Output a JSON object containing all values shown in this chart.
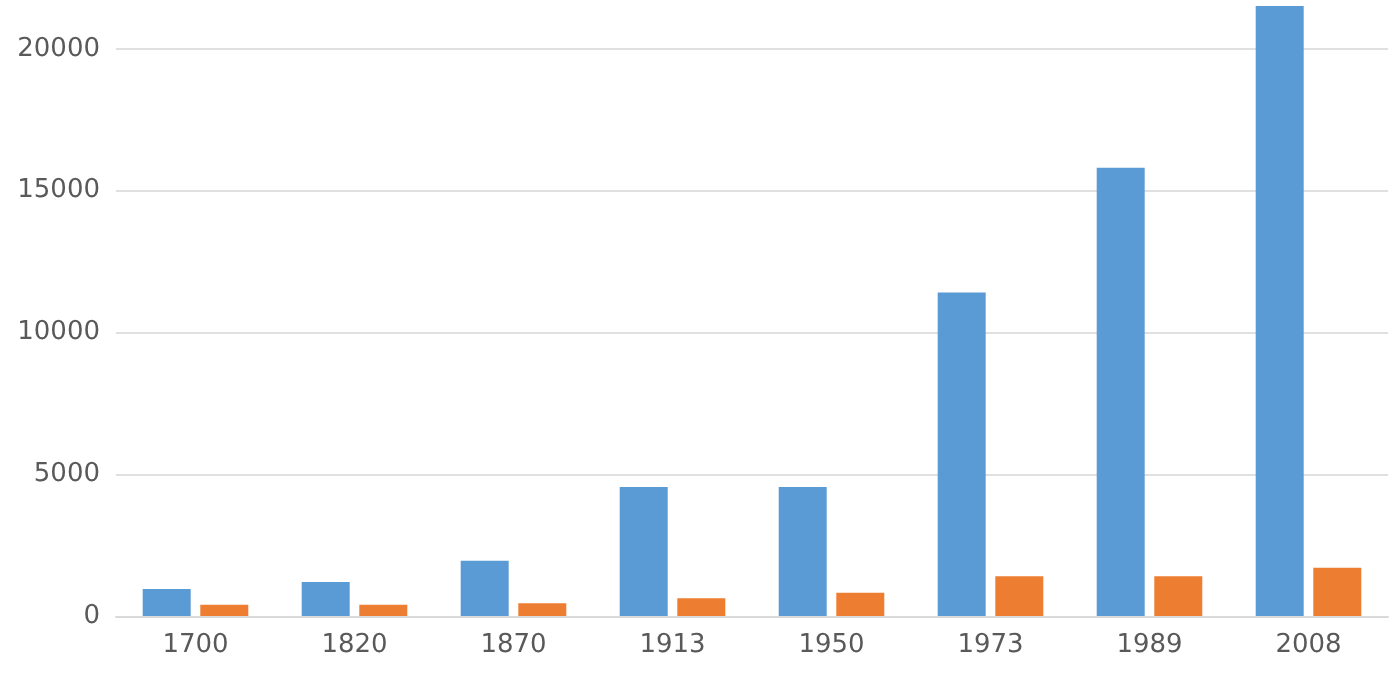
{
  "chart_data": {
    "type": "bar",
    "categories": [
      "1700",
      "1820",
      "1870",
      "1913",
      "1950",
      "1973",
      "1989",
      "2008"
    ],
    "series": [
      {
        "color": "#5b9bd5",
        "values": [
          950,
          1200,
          1950,
          4550,
          4550,
          11400,
          15800,
          21500
        ]
      },
      {
        "color": "#ed7d31",
        "values": [
          400,
          400,
          450,
          630,
          820,
          1400,
          1400,
          1700
        ]
      }
    ],
    "ylim": [
      0,
      21500
    ],
    "yticks": [
      0,
      5000,
      10000,
      15000,
      20000
    ],
    "grid": "y"
  }
}
